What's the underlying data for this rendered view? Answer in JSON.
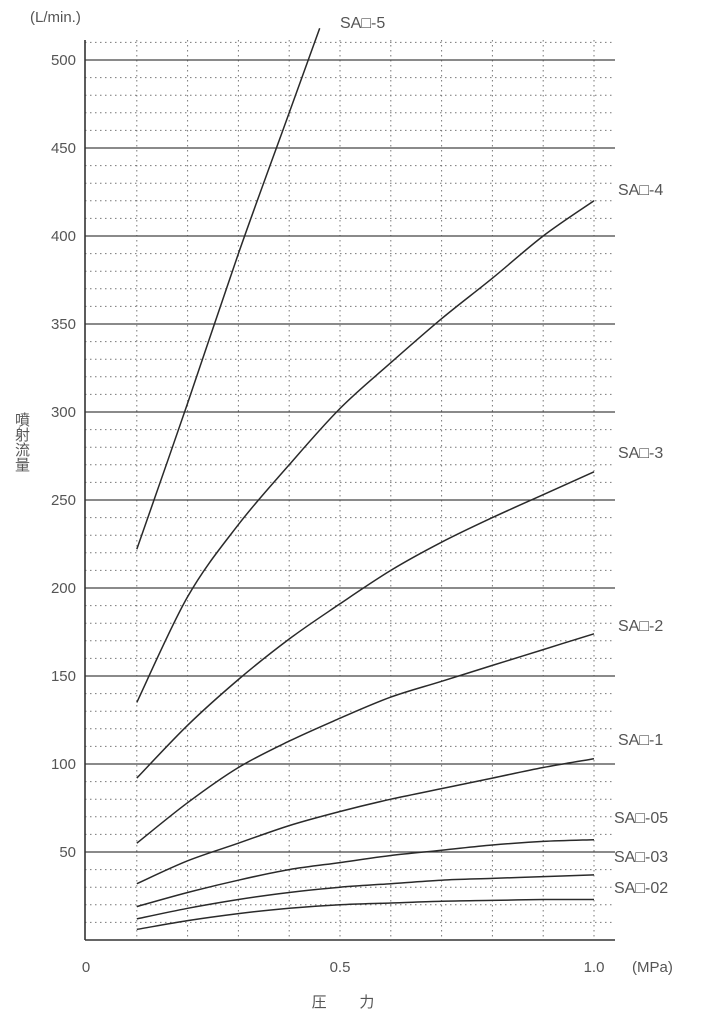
{
  "chart_data": {
    "type": "line",
    "title": "",
    "unit_y": "(L/min.)",
    "unit_x": "(MPa)",
    "xlabel": "圧 力",
    "ylabel": "噴射流量",
    "xlim": [
      0,
      1.04
    ],
    "ylim": [
      0,
      520
    ],
    "x_ticks": [
      {
        "value": 0,
        "label": "0"
      },
      {
        "value": 0.5,
        "label": "0.5"
      },
      {
        "value": 1.0,
        "label": "1.0"
      }
    ],
    "y_ticks": [
      {
        "value": 50,
        "label": "50"
      },
      {
        "value": 100,
        "label": "100"
      },
      {
        "value": 150,
        "label": "150"
      },
      {
        "value": 200,
        "label": "200"
      },
      {
        "value": 250,
        "label": "250"
      },
      {
        "value": 300,
        "label": "300"
      },
      {
        "value": 350,
        "label": "350"
      },
      {
        "value": 400,
        "label": "400"
      },
      {
        "value": 450,
        "label": "450"
      },
      {
        "value": 500,
        "label": "500"
      }
    ],
    "grid": true,
    "series": [
      {
        "name": "SA□-5",
        "x": [
          0.1,
          0.2,
          0.3,
          0.4,
          0.46
        ],
        "y": [
          222,
          305,
          390,
          470,
          518
        ]
      },
      {
        "name": "SA□-4",
        "x": [
          0.1,
          0.2,
          0.3,
          0.4,
          0.5,
          0.6,
          0.7,
          0.8,
          0.9,
          1.0
        ],
        "y": [
          135,
          195,
          236,
          270,
          302,
          328,
          353,
          376,
          400,
          420
        ]
      },
      {
        "name": "SA□-3",
        "x": [
          0.1,
          0.2,
          0.3,
          0.4,
          0.5,
          0.6,
          0.7,
          0.8,
          0.9,
          1.0
        ],
        "y": [
          92,
          122,
          148,
          171,
          191,
          210,
          226,
          240,
          253,
          266
        ]
      },
      {
        "name": "SA□-2",
        "x": [
          0.1,
          0.2,
          0.3,
          0.4,
          0.5,
          0.6,
          0.7,
          0.8,
          0.9,
          1.0
        ],
        "y": [
          55,
          78,
          98,
          113,
          126,
          138,
          147,
          156,
          165,
          174
        ]
      },
      {
        "name": "SA□-1",
        "x": [
          0.1,
          0.2,
          0.3,
          0.4,
          0.5,
          0.6,
          0.7,
          0.8,
          0.9,
          1.0
        ],
        "y": [
          32,
          45,
          55,
          65,
          73,
          80,
          86,
          92,
          98,
          103
        ]
      },
      {
        "name": "SA□-05",
        "x": [
          0.1,
          0.2,
          0.3,
          0.4,
          0.5,
          0.6,
          0.7,
          0.8,
          0.9,
          1.0
        ],
        "y": [
          19,
          27,
          34,
          40,
          44,
          48,
          51,
          54,
          56,
          57
        ]
      },
      {
        "name": "SA□-03",
        "x": [
          0.1,
          0.2,
          0.3,
          0.4,
          0.5,
          0.6,
          0.7,
          0.8,
          0.9,
          1.0
        ],
        "y": [
          12,
          18,
          23,
          27,
          30,
          32,
          34,
          35,
          36,
          37
        ]
      },
      {
        "name": "SA□-02",
        "x": [
          0.1,
          0.2,
          0.3,
          0.4,
          0.5,
          0.6,
          0.7,
          0.8,
          0.9,
          1.0
        ],
        "y": [
          6,
          11,
          15,
          18,
          20,
          21,
          22,
          22.5,
          23,
          23
        ]
      }
    ]
  }
}
